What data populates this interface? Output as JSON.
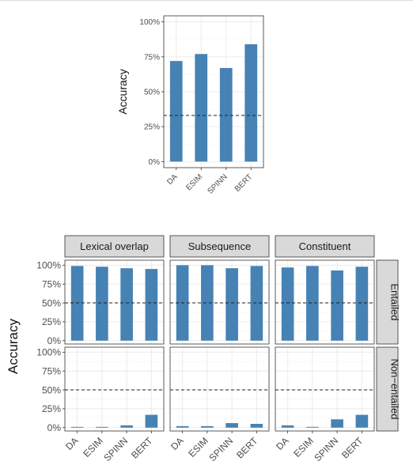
{
  "chart_data": [
    {
      "type": "bar",
      "ylabel": "Accuracy",
      "xlabel": "",
      "categories": [
        "DA",
        "ESIM",
        "SPINN",
        "BERT"
      ],
      "values": [
        72,
        77,
        67,
        84
      ],
      "yticks": [
        "0%",
        "25%",
        "50%",
        "75%",
        "100%"
      ],
      "ylim": [
        0,
        100
      ],
      "reference_line": 33,
      "bar_color": "#4682b4",
      "grid": true
    },
    {
      "type": "bar",
      "ylabel": "Accuracy",
      "xlabel": "",
      "categories": [
        "DA",
        "ESIM",
        "SPINN",
        "BERT"
      ],
      "yticks": [
        "0%",
        "25%",
        "50%",
        "75%",
        "100%"
      ],
      "ylim": [
        0,
        100
      ],
      "reference_line": 50,
      "bar_color": "#4682b4",
      "grid": true,
      "columns": [
        "Lexical overlap",
        "Subsequence",
        "Constituent"
      ],
      "rows": [
        "Entailed",
        "Non−entailed"
      ],
      "panels": [
        {
          "column": "Lexical overlap",
          "row": "Entailed",
          "values": [
            99,
            98,
            96,
            95
          ]
        },
        {
          "column": "Subsequence",
          "row": "Entailed",
          "values": [
            100,
            100,
            96,
            99
          ]
        },
        {
          "column": "Constituent",
          "row": "Entailed",
          "values": [
            97,
            99,
            93,
            98
          ]
        },
        {
          "column": "Lexical overlap",
          "row": "Non−entailed",
          "values": [
            1,
            1,
            3,
            17
          ]
        },
        {
          "column": "Subsequence",
          "row": "Non−entailed",
          "values": [
            2,
            2,
            6,
            5
          ]
        },
        {
          "column": "Constituent",
          "row": "Non−entailed",
          "values": [
            3,
            1,
            11,
            17
          ]
        }
      ]
    }
  ]
}
